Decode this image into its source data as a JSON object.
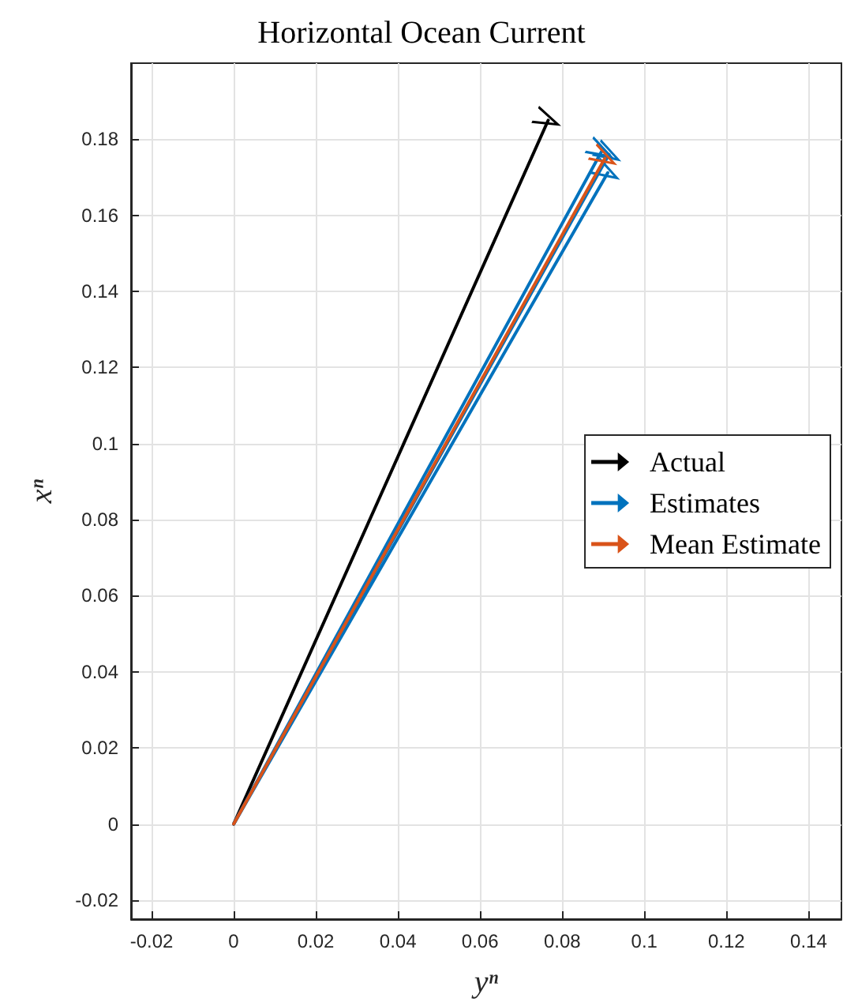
{
  "chart_data": {
    "type": "line",
    "title": "Horizontal Ocean Current",
    "xlabel": "yⁿ",
    "ylabel": "xⁿ",
    "xlim": [
      -0.025,
      0.148
    ],
    "ylim": [
      -0.025,
      0.2
    ],
    "xticks": [
      -0.02,
      0,
      0.02,
      0.04,
      0.06,
      0.08,
      0.1,
      0.12,
      0.14
    ],
    "yticks": [
      -0.02,
      0,
      0.02,
      0.04,
      0.06,
      0.08,
      0.1,
      0.12,
      0.14,
      0.16,
      0.18
    ],
    "grid": true,
    "legend": "right",
    "series": [
      {
        "name": "Actual",
        "color": "#000000",
        "x": [
          0,
          0.0766
        ],
        "values": [
          0,
          0.185
        ]
      },
      {
        "name": "Estimates",
        "color": "#0072bd",
        "x": [
          0,
          0.0896
        ],
        "values": [
          0,
          0.1768
        ]
      },
      {
        "color": "#0072bd",
        "x": [
          0,
          0.0914
        ],
        "values": [
          0,
          0.176
        ]
      },
      {
        "color": "#0072bd",
        "x": [
          0,
          0.0911
        ],
        "values": [
          0,
          0.1712
        ]
      },
      {
        "name": "Mean Estimate",
        "color": "#d95319",
        "x": [
          0,
          0.0904
        ],
        "values": [
          0,
          0.175
        ]
      }
    ]
  }
}
